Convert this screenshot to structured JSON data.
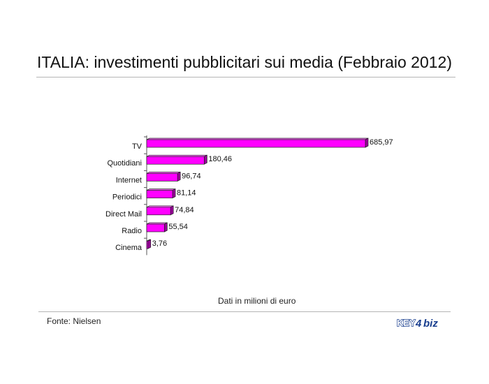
{
  "header": {
    "title": "ITALIA: investimenti pubblicitari sui media (Febbraio 2012)"
  },
  "footer": {
    "note": "Dati in milioni di euro",
    "source": "Fonte: Nielsen",
    "logo_text": "KEY4biz"
  },
  "colors": {
    "bar_front": "#ff00ff",
    "bar_top": "#ff66ff",
    "bar_side": "#990099",
    "bar_outline": "#222222",
    "axis": "#555555"
  },
  "chart_data": {
    "type": "bar",
    "orientation": "horizontal",
    "style": "3d",
    "categories": [
      "TV",
      "Quotidiani",
      "Internet",
      "Periodici",
      "Direct Mail",
      "Radio",
      "Cinema"
    ],
    "values": [
      685.97,
      180.46,
      96.74,
      81.14,
      74.84,
      55.54,
      3.76
    ],
    "value_labels": [
      "685,97",
      "180,46",
      "96,74",
      "81,14",
      "74,84",
      "55,54",
      "3,76"
    ],
    "title": "ITALIA: investimenti pubblicitari sui media (Febbraio 2012)",
    "xlabel": "",
    "ylabel": "",
    "xlim": [
      0,
      700
    ],
    "grid": false,
    "legend": "none"
  }
}
